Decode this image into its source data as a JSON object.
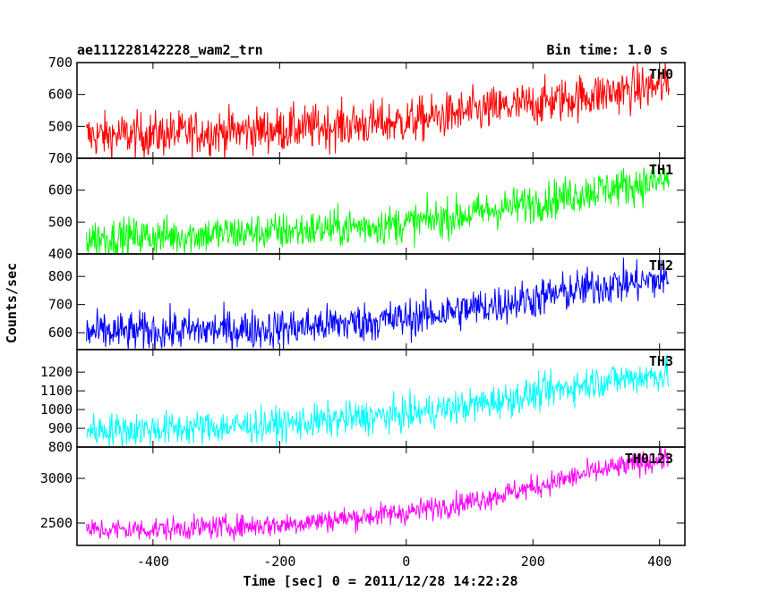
{
  "header": {
    "obs_id": "ae111228142228_wam2_trn",
    "bin_time": "Bin time: 1.0 s"
  },
  "chart_data": {
    "type": "line",
    "xlabel": "Time [sec] 0 = 2011/12/28 14:22:28",
    "ylabel": "Counts/sec",
    "xlim": [
      -520,
      440
    ],
    "x_ticks": [
      -400,
      -200,
      0,
      200,
      400
    ],
    "x_range": [
      -505,
      415
    ],
    "bin_seconds": 1.0,
    "panels": [
      {
        "name": "TH0",
        "color": "#ff0000",
        "ylim": [
          400,
          700
        ],
        "y_ticks": [
          500,
          600,
          700
        ],
        "trend": [
          [
            -505,
            470
          ],
          [
            -400,
            475
          ],
          [
            -200,
            490
          ],
          [
            0,
            515
          ],
          [
            100,
            545
          ],
          [
            200,
            570
          ],
          [
            300,
            600
          ],
          [
            415,
            630
          ]
        ],
        "noise": 35
      },
      {
        "name": "TH1",
        "color": "#00ff00",
        "ylim": [
          400,
          700
        ],
        "y_ticks": [
          400,
          500,
          600,
          700
        ],
        "trend": [
          [
            -505,
            450
          ],
          [
            -400,
            455
          ],
          [
            -200,
            470
          ],
          [
            0,
            495
          ],
          [
            100,
            525
          ],
          [
            200,
            560
          ],
          [
            300,
            600
          ],
          [
            415,
            630
          ]
        ],
        "noise": 30
      },
      {
        "name": "TH2",
        "color": "#0000ff",
        "ylim": [
          540,
          880
        ],
        "y_ticks": [
          600,
          700,
          800
        ],
        "trend": [
          [
            -505,
            600
          ],
          [
            -400,
            605
          ],
          [
            -200,
            615
          ],
          [
            0,
            650
          ],
          [
            100,
            685
          ],
          [
            200,
            720
          ],
          [
            300,
            765
          ],
          [
            415,
            790
          ]
        ],
        "noise": 35
      },
      {
        "name": "TH3",
        "color": "#00ffff",
        "ylim": [
          800,
          1320
        ],
        "y_ticks": [
          800,
          900,
          1000,
          1100,
          1200
        ],
        "trend": [
          [
            -505,
            890
          ],
          [
            -400,
            895
          ],
          [
            -200,
            920
          ],
          [
            0,
            975
          ],
          [
            100,
            1020
          ],
          [
            200,
            1080
          ],
          [
            300,
            1150
          ],
          [
            415,
            1190
          ]
        ],
        "noise": 45
      },
      {
        "name": "TH0123",
        "color": "#ff00ff",
        "ylim": [
          2250,
          3350
        ],
        "y_ticks": [
          2500,
          3000
        ],
        "trend": [
          [
            -505,
            2420
          ],
          [
            -400,
            2430
          ],
          [
            -200,
            2480
          ],
          [
            0,
            2620
          ],
          [
            100,
            2740
          ],
          [
            200,
            2900
          ],
          [
            300,
            3080
          ],
          [
            415,
            3230
          ]
        ],
        "noise": 65
      }
    ]
  }
}
